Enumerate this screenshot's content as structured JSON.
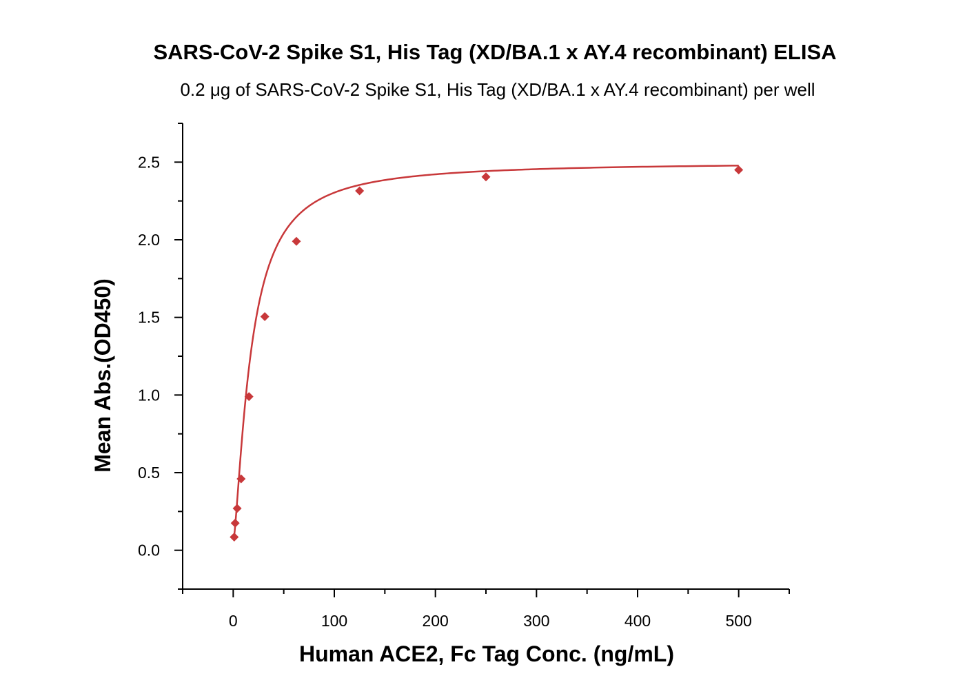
{
  "chart_data": {
    "type": "scatter",
    "title": "SARS-CoV-2 Spike S1, His Tag (XD/BA.1 x AY.4 recombinant) ELISA",
    "subtitle": "0.2 μg of SARS-CoV-2 Spike S1, His Tag (XD/BA.1 x AY.4 recombinant) per well",
    "xlabel": "Human ACE2, Fc Tag Conc. (ng/mL)",
    "ylabel": "Mean Abs.(OD450)",
    "xlim": [
      -50,
      550
    ],
    "ylim": [
      -0.25,
      2.75
    ],
    "x_ticks": [
      0,
      100,
      200,
      300,
      400,
      500
    ],
    "x_tick_labels": [
      "0",
      "100",
      "200",
      "300",
      "400",
      "500"
    ],
    "y_ticks": [
      0.0,
      0.5,
      1.0,
      1.5,
      2.0,
      2.5
    ],
    "y_tick_labels": [
      "0.0",
      "0.5",
      "1.0",
      "1.5",
      "2.0",
      "2.5"
    ],
    "grid": false,
    "series": [
      {
        "marker": "diamond",
        "color": "#c8383a",
        "x": [
          0.98,
          1.95,
          3.9,
          7.8,
          15.6,
          31.25,
          62.5,
          125,
          250,
          500
        ],
        "y": [
          0.085,
          0.175,
          0.27,
          0.46,
          0.99,
          1.505,
          1.99,
          2.315,
          2.405,
          2.45
        ]
      }
    ],
    "fit_curve": {
      "color": "#c8383a",
      "model": "4PL",
      "bottom": 0.05,
      "top": 2.5,
      "ec50": 17.5,
      "hill": 1.4
    }
  }
}
